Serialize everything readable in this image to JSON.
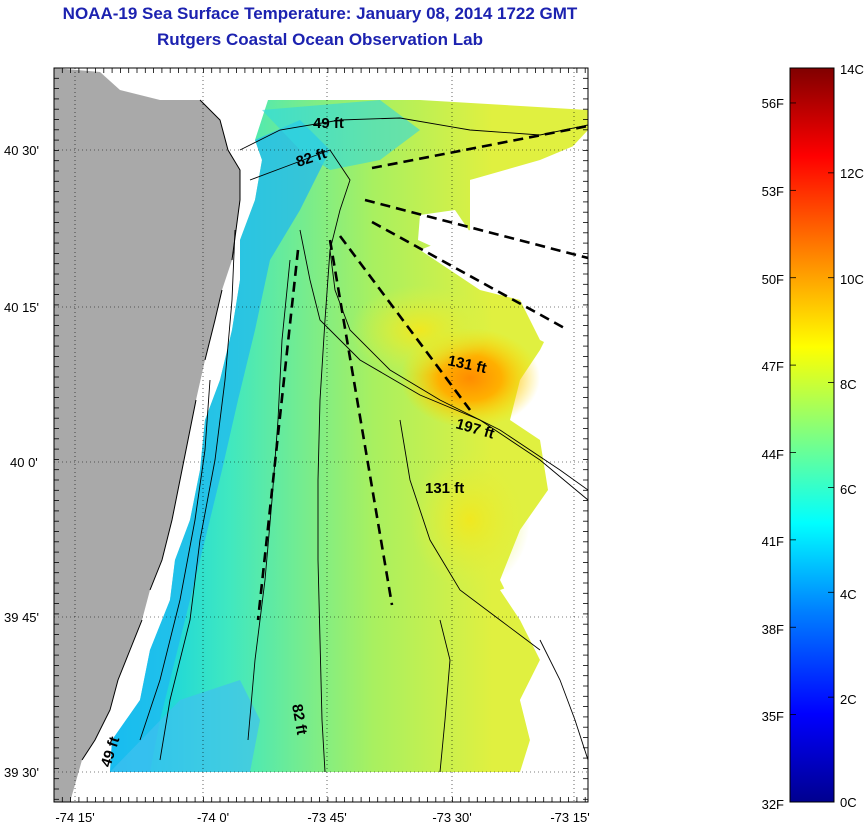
{
  "title": "NOAA-19 Sea Surface Temperature:  January 08, 2014 1722 GMT",
  "subtitle": "Rutgers Coastal Ocean Observation Lab",
  "lat_labels": [
    "40 30'",
    "40 15'",
    "40 0'",
    "39 45'",
    "39 30'"
  ],
  "lon_labels": [
    "-74 15'",
    "-74 0'",
    "-73 45'",
    "-73 30'",
    "-73 15'"
  ],
  "contour_labels": [
    "49 ft",
    "82 ft",
    "131 ft",
    "197 ft",
    "131 ft",
    "82 ft",
    "49 ft"
  ],
  "colorbar": {
    "celsius": [
      "14C",
      "12C",
      "10C",
      "8C",
      "6C",
      "4C",
      "2C",
      "0C"
    ],
    "fahrenheit": [
      "56F",
      "53F",
      "50F",
      "47F",
      "44F",
      "41F",
      "38F",
      "35F",
      "32F"
    ]
  },
  "colors": {
    "title": "#1c22b0",
    "land": "#a9a9a9",
    "colormap": [
      "#00008f",
      "#0000ff",
      "#0080ff",
      "#00ffff",
      "#80ff80",
      "#ffff00",
      "#ff8000",
      "#ff0000",
      "#800000"
    ]
  }
}
